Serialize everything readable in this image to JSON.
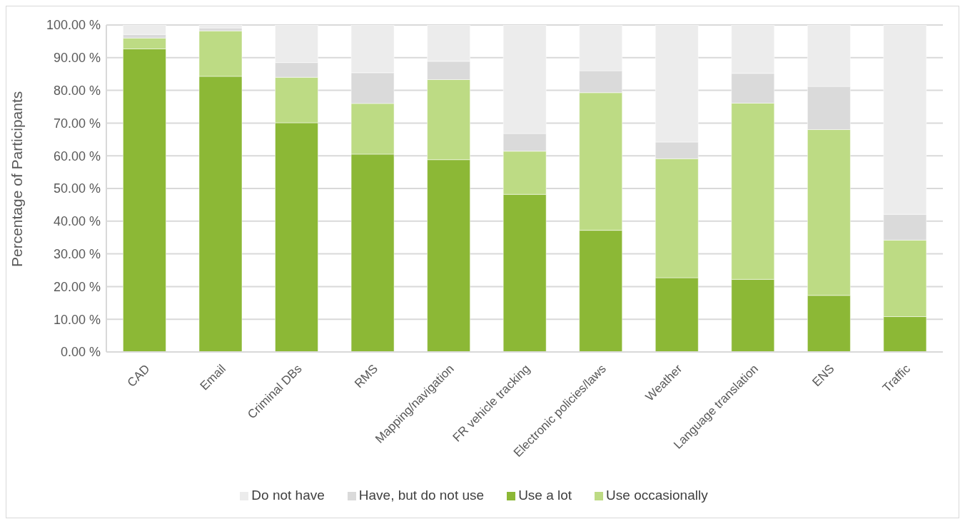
{
  "chart_data": {
    "type": "bar",
    "stacked": true,
    "ylabel": "Percentage of Participants",
    "categories": [
      "CAD",
      "Email",
      "Criminal DBs",
      "RMS",
      "Mapping/navigation",
      "FR vehicle tracking",
      "Electronic policies/laws",
      "Weather",
      "Language translation",
      "ENS",
      "Traffic"
    ],
    "series": [
      {
        "name": "Use a lot",
        "color": "#8cb836",
        "values": [
          92.7,
          84.3,
          70.1,
          60.5,
          58.8,
          48.2,
          37.2,
          22.7,
          22.2,
          17.3,
          10.8
        ]
      },
      {
        "name": "Use occasionally",
        "color": "#bddb84",
        "values": [
          3.3,
          13.9,
          13.9,
          15.5,
          24.5,
          13.2,
          42.1,
          36.4,
          53.9,
          50.7,
          23.4
        ]
      },
      {
        "name": "Have, but do not use",
        "color": "#dadada",
        "values": [
          1.1,
          0.9,
          4.5,
          9.4,
          5.6,
          5.4,
          6.7,
          5.1,
          9.1,
          13.2,
          7.9
        ]
      },
      {
        "name": "Do not have",
        "color": "#ececec",
        "values": [
          2.9,
          0.9,
          11.5,
          14.6,
          11.1,
          33.2,
          14.0,
          35.8,
          14.8,
          18.8,
          57.9
        ]
      }
    ],
    "ylim": [
      0,
      100
    ],
    "yticks": [
      {
        "value": 0,
        "label": "0.00 %"
      },
      {
        "value": 10,
        "label": "10.00 %"
      },
      {
        "value": 20,
        "label": "20.00 %"
      },
      {
        "value": 30,
        "label": "30.00 %"
      },
      {
        "value": 40,
        "label": "40.00 %"
      },
      {
        "value": 50,
        "label": "50.00 %"
      },
      {
        "value": 60,
        "label": "60.00 %"
      },
      {
        "value": 70,
        "label": "70.00 %"
      },
      {
        "value": 80,
        "label": "80.00 %"
      },
      {
        "value": 90,
        "label": "90.00 %"
      },
      {
        "value": 100,
        "label": "100.00 %"
      }
    ],
    "grid": "y",
    "legend": "bottom"
  }
}
